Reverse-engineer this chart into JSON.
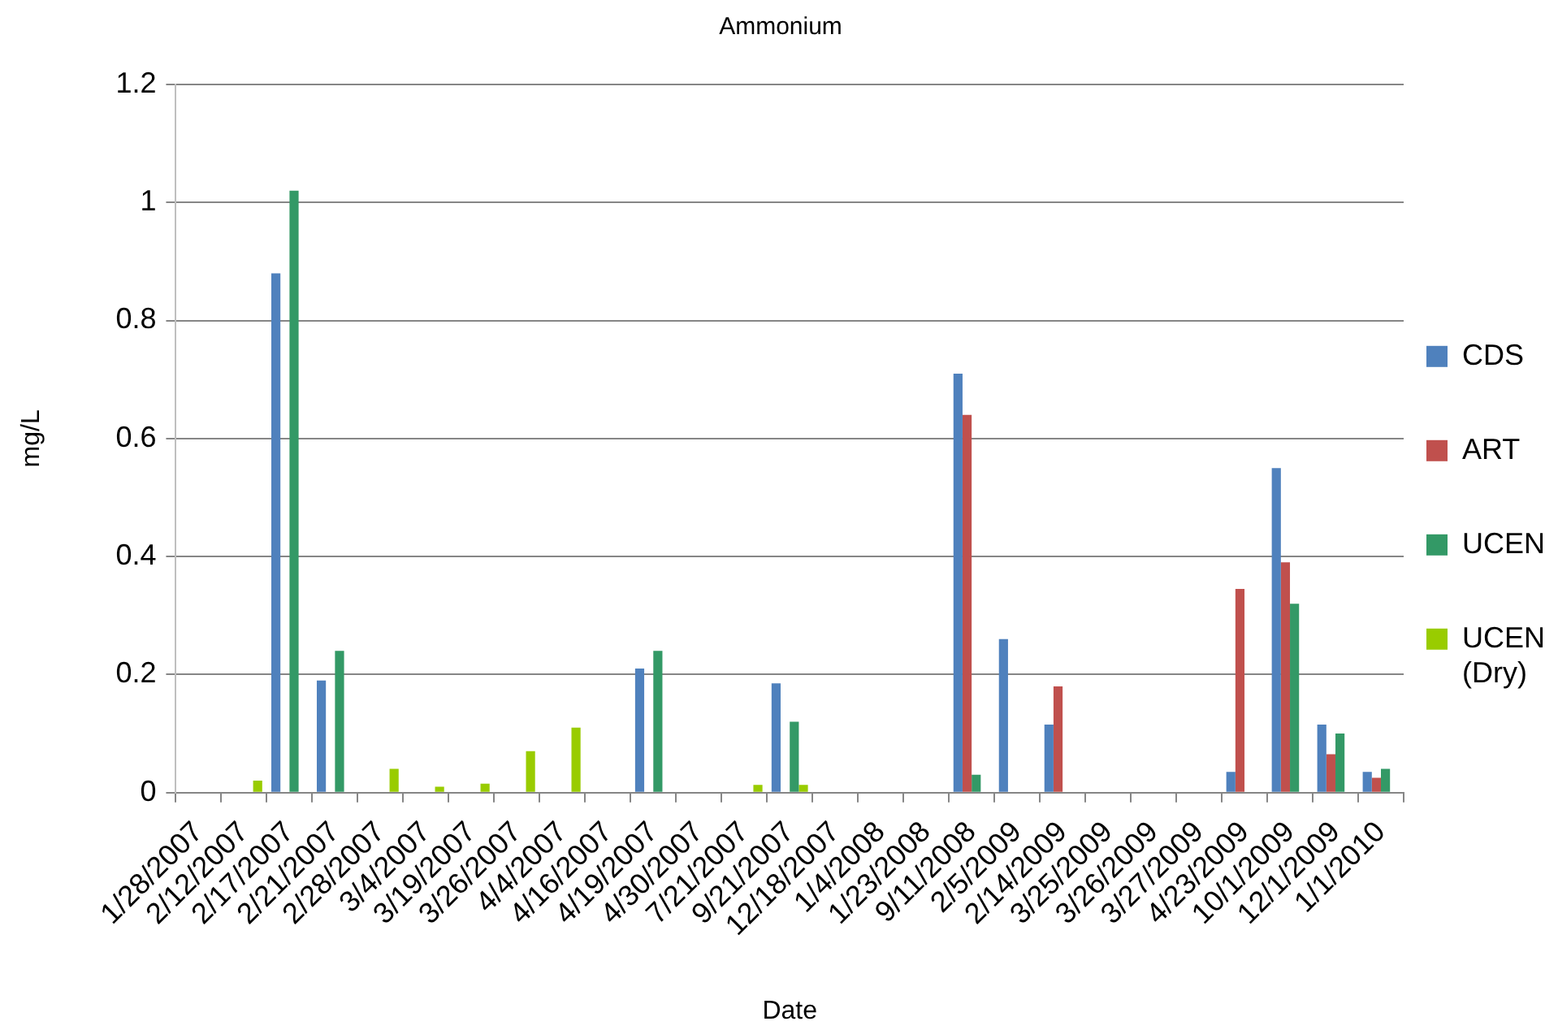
{
  "chart_data": {
    "type": "bar",
    "title": "Ammonium",
    "xlabel": "Date",
    "ylabel": "mg/L",
    "categories": [
      "1/28/2007",
      "2/12/2007",
      "2/17/2007",
      "2/21/2007",
      "2/28/2007",
      "3/4/2007",
      "3/19/2007",
      "3/26/2007",
      "4/4/2007",
      "4/16/2007",
      "4/19/2007",
      "4/30/2007",
      "7/21/2007",
      "9/21/2007",
      "12/18/2007",
      "1/4/2008",
      "1/23/2008",
      "9/11/2008",
      "2/5/2009",
      "2/14/2009",
      "3/25/2009",
      "3/26/2009",
      "3/27/2009",
      "4/23/2009",
      "10/1/2009",
      "12/1/2009",
      "1/1/2010"
    ],
    "series": [
      {
        "name": "CDS",
        "color": "#4f81bd",
        "values": [
          null,
          null,
          0.88,
          0.19,
          null,
          null,
          null,
          null,
          null,
          null,
          0.21,
          null,
          null,
          0.185,
          null,
          null,
          null,
          0.71,
          0.26,
          0.115,
          null,
          null,
          null,
          0.035,
          0.55,
          0.115,
          0.035
        ]
      },
      {
        "name": "ART",
        "color": "#c0504d",
        "values": [
          null,
          null,
          null,
          null,
          null,
          null,
          null,
          null,
          null,
          null,
          null,
          null,
          null,
          null,
          null,
          null,
          null,
          0.64,
          null,
          0.18,
          null,
          null,
          null,
          0.345,
          0.39,
          0.065,
          0.025
        ]
      },
      {
        "name": "UCEN",
        "color": "#339966",
        "values": [
          null,
          null,
          1.02,
          0.24,
          null,
          null,
          null,
          null,
          null,
          null,
          0.24,
          null,
          null,
          0.12,
          null,
          null,
          null,
          0.03,
          null,
          null,
          null,
          null,
          null,
          null,
          0.32,
          0.1,
          0.04
        ]
      },
      {
        "name": "UCEN (Dry)",
        "color": "#99cc00",
        "values": [
          null,
          0.02,
          null,
          null,
          0.04,
          0.01,
          0.015,
          0.07,
          0.11,
          null,
          null,
          null,
          0.013,
          0.013,
          null,
          null,
          null,
          null,
          null,
          null,
          null,
          null,
          null,
          null,
          null,
          null,
          null
        ]
      }
    ],
    "ylim": [
      0,
      1.2
    ],
    "yticks": [
      0,
      0.2,
      0.4,
      0.6,
      0.8,
      1,
      1.2
    ],
    "grid": "y",
    "legend": "right"
  }
}
